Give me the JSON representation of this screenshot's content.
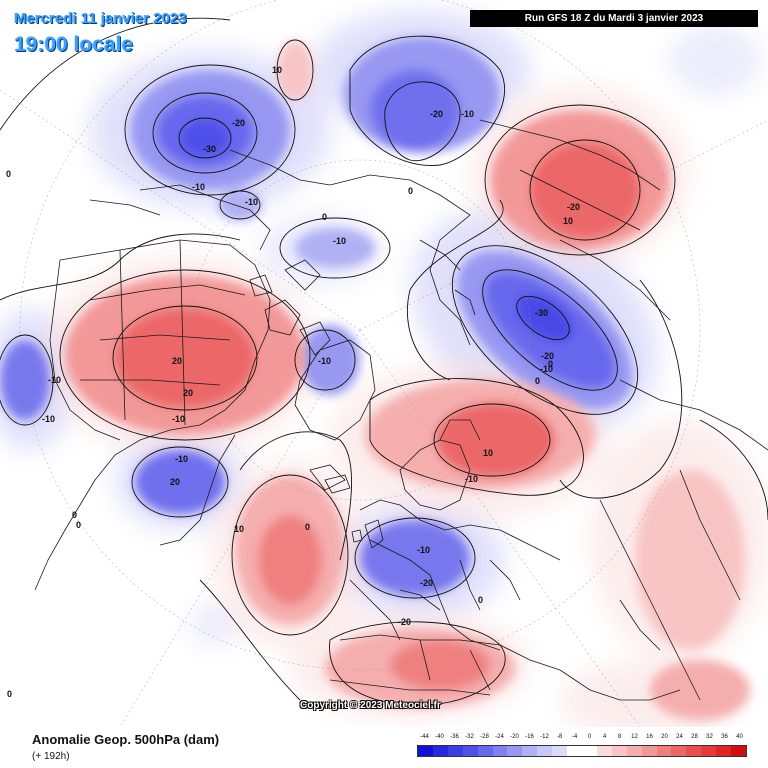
{
  "map": {
    "date_label": "Mercredi 11 janvier 2023",
    "time_label": "19:00 locale",
    "run_label": "Run GFS 18 Z du Mardi 3 janvier 2023",
    "copyright": "Copyright © 2023 Meteociel.fr",
    "variable_label": "Anomalie Geop. 500hPa (dam)",
    "lead_label": "(+ 192h)",
    "contour_labels": [
      "10",
      "-20",
      "-30",
      "-10",
      "-10",
      "-20",
      "-10",
      "0",
      "-20",
      "20",
      "10",
      "-10",
      "0",
      "-30",
      "-20",
      "-10",
      "0",
      "20",
      "20",
      "-10",
      "-10",
      "-10",
      "-10",
      "-10",
      "-10",
      "-20",
      "20",
      "10",
      "10",
      "-20",
      "-10",
      "10",
      "0",
      "0",
      "0",
      "0",
      "0",
      "0",
      "0",
      "0"
    ]
  },
  "scale": {
    "values": [
      "-44",
      "-40",
      "-36",
      "-32",
      "-28",
      "-24",
      "-20",
      "-16",
      "-12",
      "-8",
      "-4",
      "0",
      "4",
      "8",
      "12",
      "16",
      "20",
      "24",
      "28",
      "32",
      "36",
      "40"
    ],
    "colors": [
      "#1010d8",
      "#2828e0",
      "#3c3ce6",
      "#5050ea",
      "#6868ee",
      "#8080f0",
      "#9898f2",
      "#b0b0f4",
      "#c8c8f8",
      "#dcdcfa",
      "#ffffff",
      "#ffffff",
      "#fadcdc",
      "#f8c4c4",
      "#f5aeae",
      "#f39898",
      "#f08080",
      "#ec6868",
      "#e85050",
      "#e43c3c",
      "#e02424",
      "#d01010"
    ]
  },
  "colors": {
    "title_blue": "#39a0ff",
    "banner_bg": "#000000",
    "land_line": "#1a1a1a"
  }
}
